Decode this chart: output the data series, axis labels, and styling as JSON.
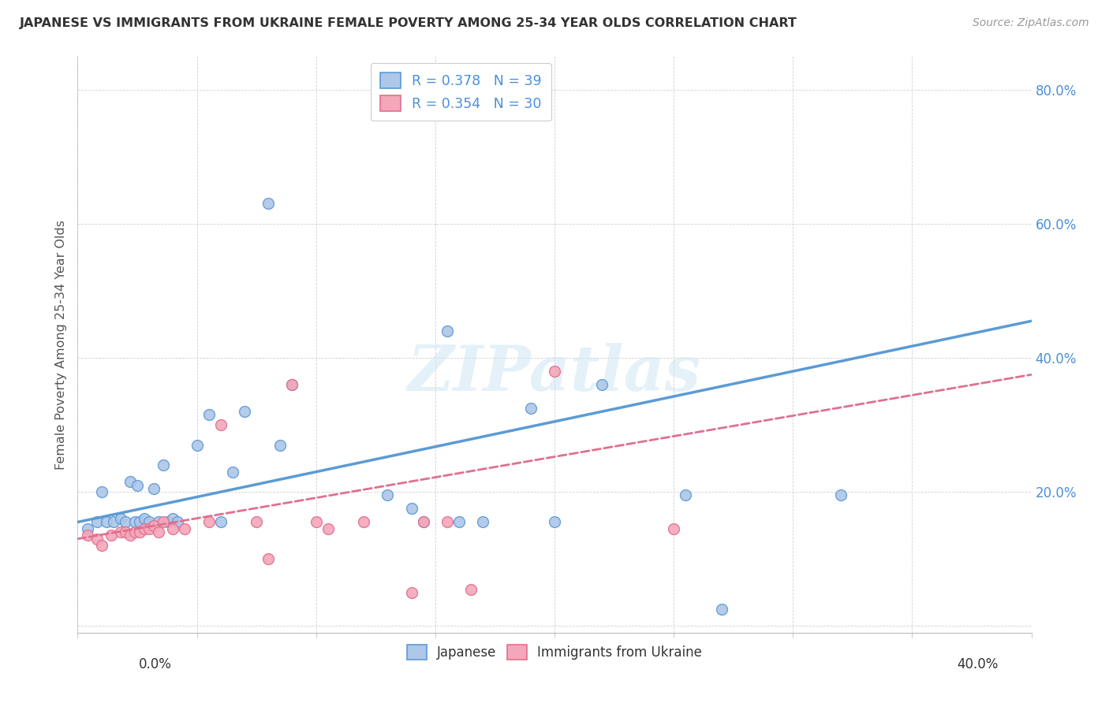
{
  "title": "JAPANESE VS IMMIGRANTS FROM UKRAINE FEMALE POVERTY AMONG 25-34 YEAR OLDS CORRELATION CHART",
  "source": "Source: ZipAtlas.com",
  "ylabel": "Female Poverty Among 25-34 Year Olds",
  "xmin": 0.0,
  "xmax": 0.4,
  "ymin": -0.01,
  "ymax": 0.85,
  "legend_japanese": "R = 0.378   N = 39",
  "legend_ukraine": "R = 0.354   N = 30",
  "japanese_color": "#aec6e8",
  "ukraine_color": "#f4a7b9",
  "line_japanese_color": "#5b9bd5",
  "line_ukraine_color": "#e07090",
  "japanese_points_x": [
    0.004,
    0.008,
    0.01,
    0.012,
    0.015,
    0.018,
    0.02,
    0.022,
    0.024,
    0.025,
    0.026,
    0.028,
    0.03,
    0.032,
    0.034,
    0.036,
    0.038,
    0.04,
    0.042,
    0.05,
    0.055,
    0.06,
    0.065,
    0.07,
    0.08,
    0.085,
    0.09,
    0.13,
    0.14,
    0.145,
    0.155,
    0.16,
    0.17,
    0.19,
    0.2,
    0.22,
    0.255,
    0.27,
    0.32
  ],
  "japanese_points_y": [
    0.145,
    0.155,
    0.2,
    0.155,
    0.155,
    0.16,
    0.155,
    0.215,
    0.155,
    0.21,
    0.155,
    0.16,
    0.155,
    0.205,
    0.155,
    0.24,
    0.155,
    0.16,
    0.155,
    0.27,
    0.315,
    0.155,
    0.23,
    0.32,
    0.63,
    0.27,
    0.36,
    0.195,
    0.175,
    0.155,
    0.44,
    0.155,
    0.155,
    0.325,
    0.155,
    0.36,
    0.195,
    0.025,
    0.195
  ],
  "ukraine_points_x": [
    0.004,
    0.008,
    0.01,
    0.014,
    0.018,
    0.02,
    0.022,
    0.024,
    0.026,
    0.028,
    0.03,
    0.032,
    0.034,
    0.036,
    0.04,
    0.045,
    0.055,
    0.06,
    0.075,
    0.08,
    0.09,
    0.1,
    0.105,
    0.12,
    0.14,
    0.145,
    0.155,
    0.165,
    0.2,
    0.25
  ],
  "ukraine_points_y": [
    0.135,
    0.13,
    0.12,
    0.135,
    0.14,
    0.14,
    0.135,
    0.14,
    0.14,
    0.145,
    0.145,
    0.15,
    0.14,
    0.155,
    0.145,
    0.145,
    0.155,
    0.3,
    0.155,
    0.1,
    0.36,
    0.155,
    0.145,
    0.155,
    0.05,
    0.155,
    0.155,
    0.055,
    0.38,
    0.145
  ],
  "line_j_x0": 0.0,
  "line_j_y0": 0.155,
  "line_j_x1": 0.4,
  "line_j_y1": 0.455,
  "line_u_x0": 0.0,
  "line_u_y0": 0.13,
  "line_u_x1": 0.4,
  "line_u_y1": 0.375
}
